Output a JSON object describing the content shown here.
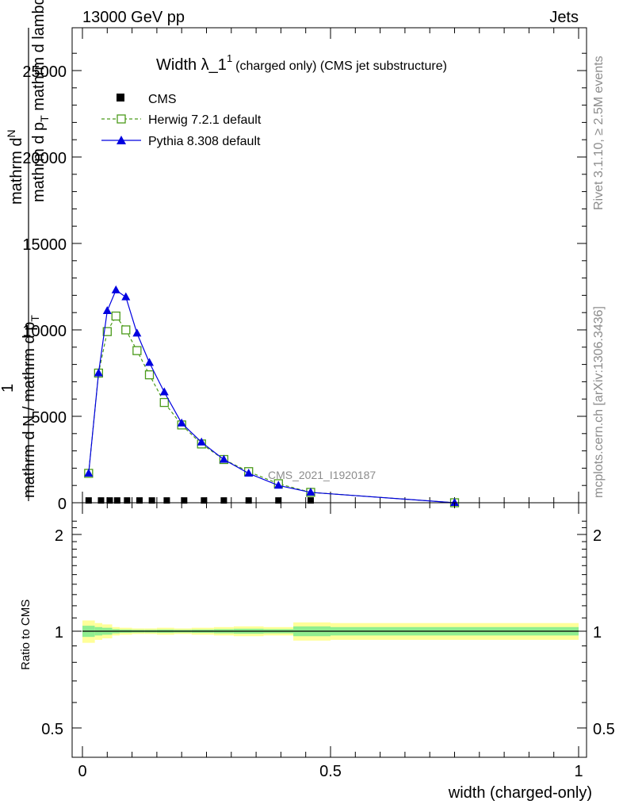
{
  "header": {
    "left": "13000 GeV pp",
    "right": "Jets"
  },
  "side": {
    "rivet": "Rivet 3.1.10, ≥ 2.5M events",
    "mcplots": "mcplots.cern.ch [arXiv:1306.3436]"
  },
  "chart_data": [
    {
      "type": "line",
      "title_main": "Width λ_1",
      "title_sup": "1",
      "title_rest": "(charged only) (CMS jet substructure)",
      "watermark": "CMS_2021_I1920187",
      "ylabel_top": "mathrm d",
      "ylabel_N": "N",
      "ylabel_bottom_a": "mathrm d p",
      "ylabel_bottom_sub": "T",
      "ylabel_bottom_b": " mathrm d lambda",
      "ylabel_prefix_num": "1",
      "ylabel_prefix_den_a": "mathrm d N / mathrm d p",
      "ylabel_prefix_den_sub": "T",
      "xlim": [
        0,
        1
      ],
      "ylim": [
        0,
        25000
      ],
      "yticks": [
        0,
        5000,
        10000,
        15000,
        20000,
        25000
      ],
      "ytick_labels": [
        "0",
        "5000",
        "10000",
        "15000",
        "20000",
        "25000"
      ],
      "legend_position": "top-left",
      "series": [
        {
          "name": "CMS",
          "color": "#000000",
          "marker": "square-filled",
          "x": [
            0.0125,
            0.0375,
            0.055,
            0.07,
            0.09,
            0.115,
            0.14,
            0.17,
            0.205,
            0.245,
            0.285,
            0.335,
            0.395,
            0.46
          ],
          "y": [
            40,
            40,
            40,
            40,
            40,
            40,
            40,
            40,
            40,
            40,
            40,
            40,
            40,
            40
          ]
        },
        {
          "name": "Herwig 7.2.1 default",
          "color": "#4a9a1a",
          "marker": "square-open",
          "dash": true,
          "x": [
            0.0125,
            0.0325,
            0.05,
            0.0675,
            0.0875,
            0.11,
            0.135,
            0.165,
            0.2,
            0.24,
            0.285,
            0.335,
            0.395,
            0.46,
            0.75
          ],
          "y": [
            1700,
            7500,
            9900,
            10800,
            10000,
            8800,
            7400,
            5800,
            4500,
            3400,
            2500,
            1800,
            1100,
            600,
            0
          ]
        },
        {
          "name": "Pythia 8.308 default",
          "color": "#0000e0",
          "marker": "triangle-filled",
          "x": [
            0.0125,
            0.0325,
            0.05,
            0.0675,
            0.0875,
            0.11,
            0.135,
            0.165,
            0.2,
            0.24,
            0.285,
            0.335,
            0.395,
            0.46,
            0.75
          ],
          "y": [
            1700,
            7500,
            11100,
            12300,
            11900,
            9800,
            8100,
            6400,
            4600,
            3500,
            2500,
            1700,
            1000,
            600,
            0
          ]
        }
      ]
    },
    {
      "type": "area",
      "ylabel": "Ratio to CMS",
      "xlabel": "width (charged-only)",
      "xlim": [
        0,
        1
      ],
      "ylim": [
        0.35,
        2.3
      ],
      "yticks": [
        0.5,
        1,
        2
      ],
      "ytick_labels": [
        "0.5",
        "1",
        "2"
      ],
      "xticks": [
        0,
        0.5,
        1
      ],
      "xtick_labels": [
        "0",
        "0.5",
        "1"
      ],
      "bands": {
        "edges": [
          0.0,
          0.025,
          0.04,
          0.06,
          0.075,
          0.1,
          0.125,
          0.15,
          0.185,
          0.22,
          0.265,
          0.305,
          0.365,
          0.425,
          0.5,
          1.0
        ],
        "yellow_halfwidth": [
          0.08,
          0.06,
          0.05,
          0.03,
          0.025,
          0.02,
          0.02,
          0.025,
          0.02,
          0.025,
          0.03,
          0.035,
          0.03,
          0.065,
          0.06
        ],
        "green_halfwidth": [
          0.04,
          0.03,
          0.025,
          0.015,
          0.012,
          0.01,
          0.01,
          0.012,
          0.01,
          0.012,
          0.015,
          0.018,
          0.015,
          0.035,
          0.03
        ],
        "yellow_color": "#ffff99",
        "green_color": "#90ee90"
      }
    }
  ]
}
